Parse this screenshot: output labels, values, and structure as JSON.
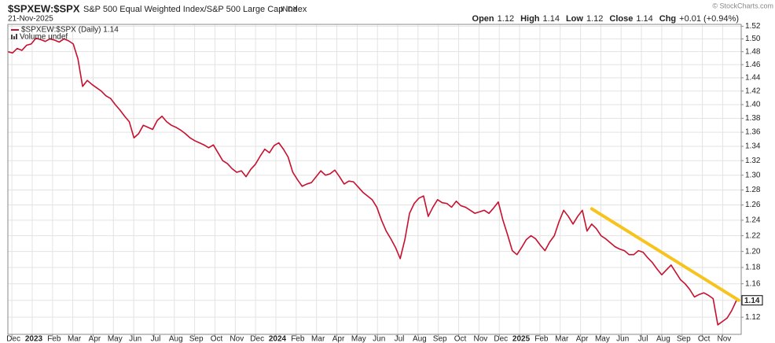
{
  "chart_data": {
    "type": "line",
    "title": "$SPXEW:$SPX",
    "subtitle": "S&P 500 Equal Weighted Index/S&P 500 Large Cap Index",
    "exchange": "INDX",
    "date": "21-Nov-2025",
    "credit": "© StockCharts.com",
    "quote": [
      {
        "label": "Open",
        "value": "1.12"
      },
      {
        "label": "High",
        "value": "1.14"
      },
      {
        "label": "Low",
        "value": "1.12"
      },
      {
        "label": "Close",
        "value": "1.14"
      },
      {
        "label": "Chg",
        "value": "+0.01 (+0.94%)"
      }
    ],
    "volume_label": "Volume undef",
    "last_label": "1.14",
    "log": true,
    "grid": true,
    "xlim": [
      0,
      156
    ],
    "ylim": [
      1.1,
      1.523
    ],
    "yticks": [
      1.12,
      1.14,
      1.16,
      1.18,
      {
        "value": 1.2,
        "label": "1.20"
      },
      1.22,
      1.24,
      1.26,
      1.28,
      {
        "value": 1.3,
        "label": "1.30"
      },
      1.32,
      1.34,
      1.36,
      1.38,
      {
        "value": 1.4,
        "label": "1.40"
      },
      1.42,
      1.44,
      1.46,
      1.48,
      {
        "value": 1.5,
        "label": "1.50"
      },
      1.52
    ],
    "xticks": [
      {
        "value": 0.86,
        "label": "Dec"
      },
      {
        "value": 5.21,
        "label": "2023"
      },
      {
        "value": 9.56,
        "label": "Feb"
      },
      {
        "value": 13.9,
        "label": "Mar"
      },
      {
        "value": 18.25,
        "label": "Apr"
      },
      {
        "value": 22.6,
        "label": "May"
      },
      {
        "value": 26.95,
        "label": "Jun"
      },
      {
        "value": 31.3,
        "label": "Jul"
      },
      {
        "value": 35.64,
        "label": "Aug"
      },
      {
        "value": 39.99,
        "label": "Sep"
      },
      {
        "value": 44.34,
        "label": "Oct"
      },
      {
        "value": 48.69,
        "label": "Nov"
      },
      {
        "value": 53.04,
        "label": "Dec"
      },
      {
        "value": 57.38,
        "label": "2024"
      },
      {
        "value": 61.73,
        "label": "Feb"
      },
      {
        "value": 66.08,
        "label": "Mar"
      },
      {
        "value": 70.43,
        "label": "Apr"
      },
      {
        "value": 74.78,
        "label": "May"
      },
      {
        "value": 79.13,
        "label": "Jun"
      },
      {
        "value": 83.47,
        "label": "Jul"
      },
      {
        "value": 87.82,
        "label": "Aug"
      },
      {
        "value": 92.17,
        "label": "Sep"
      },
      {
        "value": 96.52,
        "label": "Oct"
      },
      {
        "value": 100.87,
        "label": "Nov"
      },
      {
        "value": 105.22,
        "label": "Dec"
      },
      {
        "value": 109.56,
        "label": "2025"
      },
      {
        "value": 113.91,
        "label": "Feb"
      },
      {
        "value": 118.26,
        "label": "Mar"
      },
      {
        "value": 122.61,
        "label": "Apr"
      },
      {
        "value": 126.96,
        "label": "May"
      },
      {
        "value": 131.3,
        "label": "Jun"
      },
      {
        "value": 135.65,
        "label": "Jul"
      },
      {
        "value": 140.0,
        "label": "Aug"
      },
      {
        "value": 144.35,
        "label": "Sep"
      },
      {
        "value": 148.7,
        "label": "Oct"
      },
      {
        "value": 153.04,
        "label": "Nov"
      }
    ],
    "series": [
      {
        "name": "$SPXEW:$SPX (Daily) 1.14",
        "color": "#c8102e",
        "values": [
          1.48,
          1.478,
          1.485,
          1.482,
          1.49,
          1.492,
          1.501,
          1.499,
          1.496,
          1.5,
          1.498,
          1.495,
          1.5,
          1.497,
          1.492,
          1.469,
          1.427,
          1.436,
          1.43,
          1.425,
          1.42,
          1.413,
          1.409,
          1.4,
          1.392,
          1.383,
          1.375,
          1.352,
          1.358,
          1.37,
          1.367,
          1.364,
          1.377,
          1.383,
          1.375,
          1.37,
          1.367,
          1.363,
          1.358,
          1.352,
          1.348,
          1.345,
          1.342,
          1.338,
          1.342,
          1.331,
          1.32,
          1.316,
          1.309,
          1.304,
          1.306,
          1.298,
          1.308,
          1.315,
          1.326,
          1.336,
          1.331,
          1.341,
          1.345,
          1.336,
          1.325,
          1.304,
          1.294,
          1.285,
          1.288,
          1.29,
          1.298,
          1.306,
          1.3,
          1.302,
          1.307,
          1.298,
          1.288,
          1.292,
          1.291,
          1.284,
          1.277,
          1.272,
          1.267,
          1.257,
          1.24,
          1.226,
          1.216,
          1.205,
          1.191,
          1.215,
          1.249,
          1.262,
          1.269,
          1.272,
          1.245,
          1.257,
          1.267,
          1.263,
          1.262,
          1.257,
          1.265,
          1.259,
          1.257,
          1.253,
          1.249,
          1.251,
          1.253,
          1.249,
          1.256,
          1.264,
          1.24,
          1.221,
          1.201,
          1.196,
          1.205,
          1.215,
          1.22,
          1.216,
          1.208,
          1.201,
          1.212,
          1.22,
          1.238,
          1.253,
          1.245,
          1.235,
          1.245,
          1.253,
          1.226,
          1.235,
          1.229,
          1.22,
          1.216,
          1.211,
          1.206,
          1.203,
          1.201,
          1.196,
          1.196,
          1.201,
          1.199,
          1.192,
          1.186,
          1.178,
          1.171,
          1.177,
          1.183,
          1.174,
          1.165,
          1.16,
          1.153,
          1.144,
          1.147,
          1.149,
          1.146,
          1.142,
          1.111,
          1.115,
          1.119,
          1.128,
          1.14
        ]
      }
    ],
    "trendline": {
      "color": "#f7c31e",
      "x": [
        125,
        156.5
      ],
      "values": [
        1.255,
        1.14
      ]
    }
  }
}
